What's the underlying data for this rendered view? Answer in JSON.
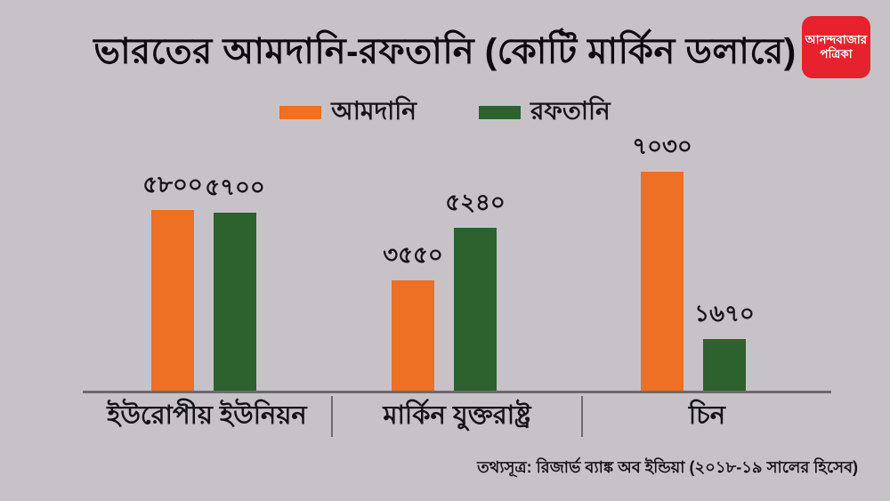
{
  "title": "ভারতের আমদানি-রফতানি (কোটি মার্কিন ডলারে)",
  "logo": {
    "line1": "আনন্দবাজার",
    "line2": "পত্রিকা",
    "bg_color": "#e8212f",
    "text_color": "#ffffff"
  },
  "colors": {
    "background": "#c7c2c8",
    "import_orange": "#ed7024",
    "export_green": "#2d612e",
    "axis": "#6e6a70",
    "text": "#15131a"
  },
  "chart_data": {
    "type": "bar",
    "title": "ভারতের আমদানি-রফতানি (কোটি মার্কিন ডলারে)",
    "categories": [
      "ইউরোপীয় ইউনিয়ন",
      "মার্কিন যুক্তরাষ্ট্র",
      "চিন"
    ],
    "series": [
      {
        "name": "আমদানি",
        "color": "#ed7024",
        "values": [
          5800,
          3550,
          7030
        ],
        "value_labels": [
          "৫৮০০",
          "৩৫৫০",
          "৭০৩০"
        ]
      },
      {
        "name": "রফতানি",
        "color": "#2d612e",
        "values": [
          5700,
          5240,
          1670
        ],
        "value_labels": [
          "৫৭০০",
          "৫২৪০",
          "১৬৭০"
        ]
      }
    ],
    "ylim": [
      0,
      7500
    ],
    "grid": false,
    "legend_position": "top",
    "value_labels_position": "above-bars",
    "source": "তথ্যসূত্র: রিজার্ভ ব্যাঙ্ক অব ইন্ডিয়া (২০১৮-১৯ সালের হিসেব)"
  }
}
